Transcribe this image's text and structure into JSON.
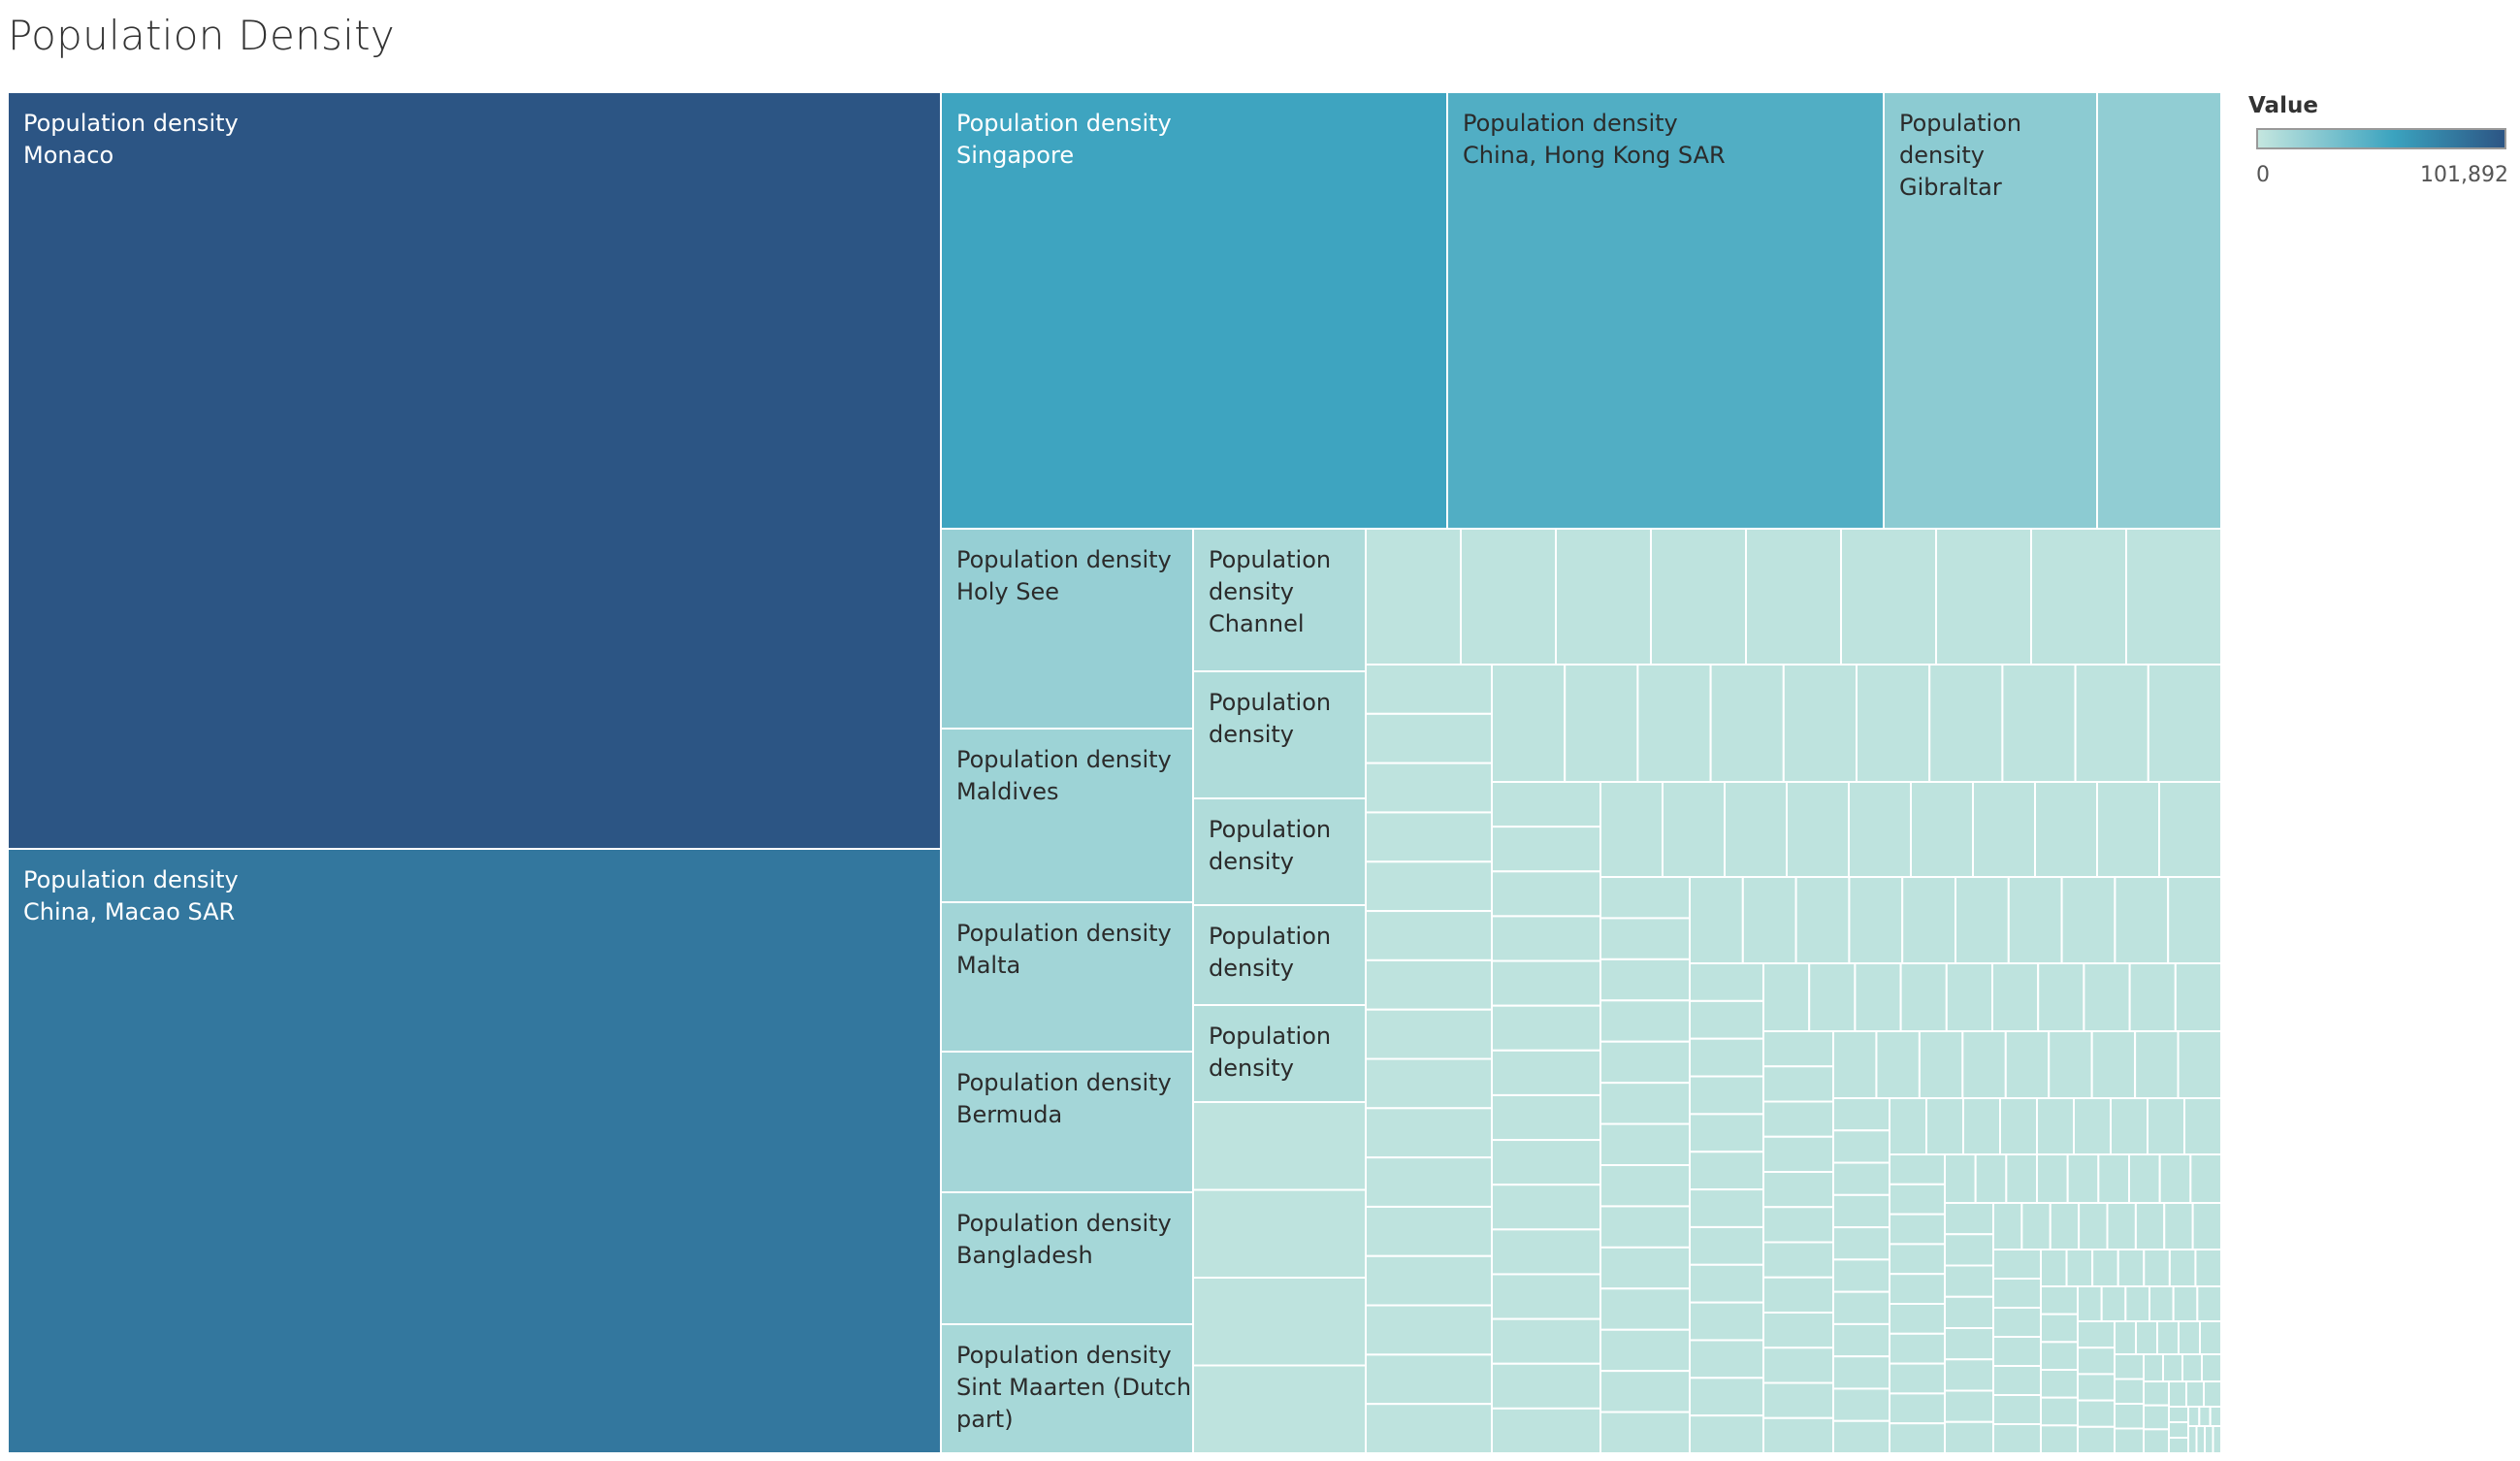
{
  "title": "Population Density",
  "legend": {
    "title": "Value",
    "min_label": "0",
    "max_label": "101,892",
    "color_low": "#c4e6df",
    "color_mid": "#3ba3bf",
    "color_high": "#2c5584"
  },
  "chart_data": {
    "type": "treemap",
    "title": "Population Density",
    "measure": "Value",
    "value_range": [
      0,
      101892
    ],
    "labeled_items": [
      {
        "category": "Population density",
        "country": "Monaco",
        "value": 101892
      },
      {
        "category": "Population density",
        "country": "China, Macao SAR",
        "value": 82000
      },
      {
        "category": "Population density",
        "country": "Singapore",
        "value": 55000
      },
      {
        "category": "Population density",
        "country": "China, Hong Kong SAR",
        "value": 47000
      },
      {
        "category": "Population density",
        "country": "Gibraltar",
        "value": 23000
      },
      {
        "category": "Population density",
        "country": "Holy See",
        "value": 19000
      },
      {
        "category": "Population density",
        "country": "Maldives",
        "value": 16000
      },
      {
        "category": "Population density",
        "country": "Malta",
        "value": 14000
      },
      {
        "category": "Population density",
        "country": "Bermuda",
        "value": 13000
      },
      {
        "category": "Population density",
        "country": "Bangladesh",
        "value": 12500
      },
      {
        "category": "Population density",
        "country": "Sint Maarten (Dutch part)",
        "value": 12000
      },
      {
        "category": "Population density",
        "country": "Channel",
        "value": 9000
      },
      {
        "category": "Population density",
        "country": "",
        "value": 8500
      },
      {
        "category": "Population density",
        "country": "",
        "value": 8000
      },
      {
        "category": "Population density",
        "country": "",
        "value": 7500
      },
      {
        "category": "Population density",
        "country": "",
        "value": 7000
      }
    ],
    "unlabeled_item_count": 195
  }
}
